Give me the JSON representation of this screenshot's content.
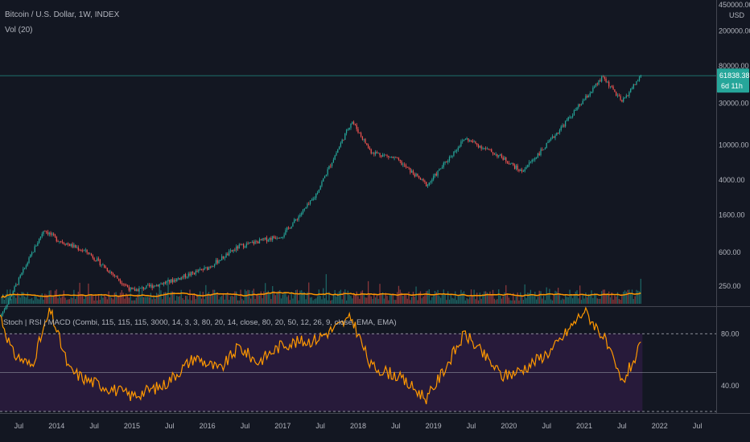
{
  "header": {
    "symbol": "Bitcoin / U.S. Dollar, 1W, INDEX",
    "volume_indicator": "Vol (20)",
    "lower_indicator": "Stoch | RSI | MACD (Combi, 115, 115, 115, 3000, 14, 3, 3, 80, 20, 14, close, 80, 20, 50, 12, 26, 9, close, EMA, EMA)"
  },
  "price_axis": {
    "currency": "USD",
    "ticks": [
      "450000.00",
      "200000.00",
      "80000.00",
      "30000.00",
      "10000.00",
      "4000.00",
      "1600.00",
      "600.00",
      "250.00"
    ]
  },
  "last_price": {
    "value": "61838.38",
    "countdown": "6d 11h"
  },
  "indicator_axis": {
    "ticks": [
      "80.00",
      "40.00"
    ]
  },
  "time_axis": {
    "labels": [
      "Jul",
      "2014",
      "Jul",
      "2015",
      "Jul",
      "2016",
      "Jul",
      "2017",
      "Jul",
      "2018",
      "Jul",
      "2019",
      "Jul",
      "2020",
      "Jul",
      "2021",
      "Jul",
      "2022",
      "Jul"
    ]
  },
  "colors": {
    "background": "#131722",
    "up": "#26a69a",
    "down": "#ef5350",
    "volume_ma": "#ff9800",
    "oscillator": "#ff9800",
    "oscillator_band": "#2a1b3d",
    "price_line": "#26a69a"
  },
  "chart_data": [
    {
      "type": "candlestick",
      "title": "Bitcoin / U.S. Dollar, 1W, INDEX",
      "y_scale": "log",
      "ylim": [
        150,
        450000
      ],
      "x_range": [
        "2013-04",
        "2022-10"
      ],
      "key_points": [
        {
          "x": "2013-04",
          "close": 110
        },
        {
          "x": "2013-11",
          "close": 1100
        },
        {
          "x": "2014-01",
          "close": 850
        },
        {
          "x": "2014-06",
          "close": 600
        },
        {
          "x": "2015-01",
          "close": 220
        },
        {
          "x": "2015-07",
          "close": 280
        },
        {
          "x": "2016-01",
          "close": 400
        },
        {
          "x": "2016-06",
          "close": 700
        },
        {
          "x": "2017-01",
          "close": 950
        },
        {
          "x": "2017-06",
          "close": 2500
        },
        {
          "x": "2017-12",
          "close": 19000
        },
        {
          "x": "2018-03",
          "close": 8500
        },
        {
          "x": "2018-07",
          "close": 7000
        },
        {
          "x": "2018-12",
          "close": 3500
        },
        {
          "x": "2019-06",
          "close": 12000
        },
        {
          "x": "2019-12",
          "close": 7200
        },
        {
          "x": "2020-03",
          "close": 5000
        },
        {
          "x": "2020-07",
          "close": 10000
        },
        {
          "x": "2021-01",
          "close": 33000
        },
        {
          "x": "2021-04",
          "close": 60000
        },
        {
          "x": "2021-07",
          "close": 31000
        },
        {
          "x": "2021-10",
          "close": 61838.38
        }
      ],
      "volume_ma_label": "Vol (20)"
    },
    {
      "type": "line",
      "title": "Stoch | RSI | MACD",
      "ylim": [
        20,
        100
      ],
      "levels": [
        80,
        50,
        20
      ],
      "key_points": [
        {
          "x": "2013-04",
          "y": 95
        },
        {
          "x": "2013-06",
          "y": 65
        },
        {
          "x": "2013-09",
          "y": 55
        },
        {
          "x": "2013-12",
          "y": 98
        },
        {
          "x": "2014-03",
          "y": 52
        },
        {
          "x": "2014-06",
          "y": 44
        },
        {
          "x": "2015-01",
          "y": 32
        },
        {
          "x": "2015-06",
          "y": 40
        },
        {
          "x": "2015-11",
          "y": 62
        },
        {
          "x": "2016-03",
          "y": 52
        },
        {
          "x": "2016-06",
          "y": 70
        },
        {
          "x": "2016-09",
          "y": 58
        },
        {
          "x": "2017-01",
          "y": 72
        },
        {
          "x": "2017-06",
          "y": 75
        },
        {
          "x": "2017-12",
          "y": 92
        },
        {
          "x": "2018-03",
          "y": 55
        },
        {
          "x": "2018-07",
          "y": 48
        },
        {
          "x": "2018-12",
          "y": 30
        },
        {
          "x": "2019-06",
          "y": 80
        },
        {
          "x": "2019-12",
          "y": 47
        },
        {
          "x": "2020-03",
          "y": 52
        },
        {
          "x": "2020-08",
          "y": 68
        },
        {
          "x": "2021-01",
          "y": 98
        },
        {
          "x": "2021-04",
          "y": 78
        },
        {
          "x": "2021-07",
          "y": 42
        },
        {
          "x": "2021-10",
          "y": 70
        }
      ]
    }
  ]
}
